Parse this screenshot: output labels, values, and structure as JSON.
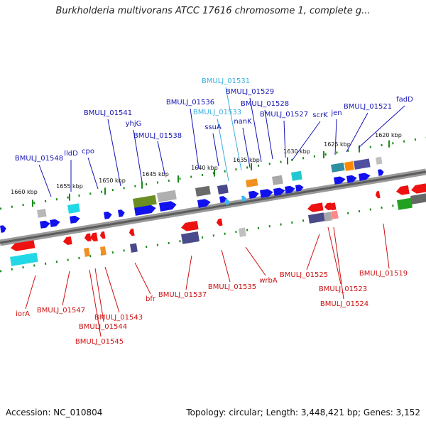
{
  "title": "Burkholderia multivorans ATCC 17616 chromosome 1, complete g...",
  "footer": {
    "accession": "Accession: NC_010804",
    "topology": "Topology: circular; Length: 3,448,421 bp; Genes: 3,152"
  },
  "colors": {
    "backbone": "#808080",
    "tick": "#1a8a1a",
    "top_label": "#1414b4",
    "bottom_label": "#cc1010",
    "highlight_label": "#3ab0e0",
    "forward_gene": "#1111ee",
    "reverse_gene": "#ee1111"
  },
  "scale_labels": [
    "1660 kbp",
    "1655 kbp",
    "1650 kbp",
    "1645 kbp",
    "1640 kbp",
    "1635 kbp",
    "1630 kbp",
    "1625 kbp",
    "1620 kbp"
  ],
  "top_genes": [
    "BMULJ_01548",
    "lldD",
    "cpo",
    "BMULJ_01541",
    "yhjG",
    "BMULJ_01538",
    "BMULJ_01536",
    "BMULJ_01533",
    "ssuA",
    "BMULJ_01531",
    "nanK",
    "BMULJ_01529",
    "BMULJ_01528",
    "BMULJ_01527",
    "scrK",
    "jen",
    "BMULJ_01521",
    "fadD"
  ],
  "bottom_genes": [
    "iorA",
    "BMULJ_01547",
    "BMULJ_01545",
    "BMULJ_01544",
    "BMULJ_01543",
    "bfr",
    "BMULJ_01537",
    "BMULJ_01535",
    "wrbA",
    "BMULJ_01525",
    "BMULJ_01523",
    "BMULJ_01524",
    "BMULJ_01519"
  ]
}
